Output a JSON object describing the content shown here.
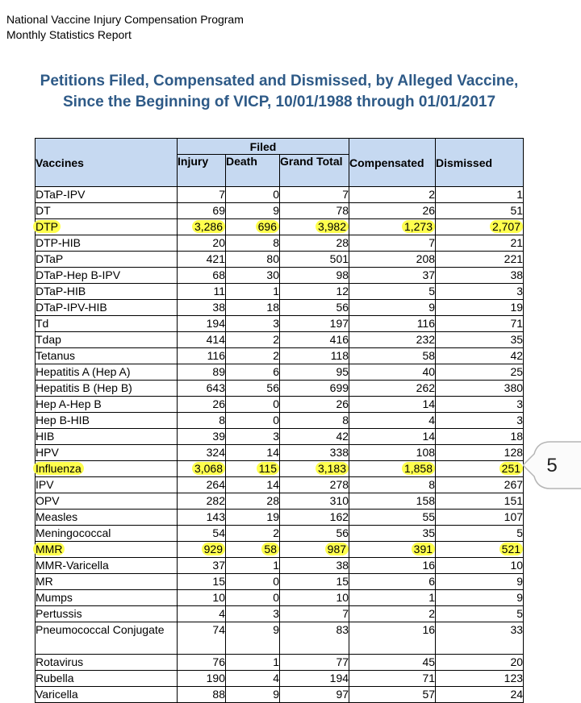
{
  "header": {
    "program": "National Vaccine Injury Compensation Program",
    "report": "Monthly Statistics Report"
  },
  "title": {
    "line1": "Petitions Filed, Compensated and Dismissed, by Alleged Vaccine,",
    "line2": "Since the Beginning of VICP, 10/01/1988 through 01/01/2017"
  },
  "table": {
    "headers": {
      "vaccines": "Vaccines",
      "filed": "Filed",
      "injury": "Injury",
      "death": "Death",
      "grand_total": "Grand Total",
      "compensated": "Compensated",
      "dismissed": "Dismissed"
    },
    "rows": [
      {
        "vaccine": "DTaP-IPV",
        "injury": "7",
        "death": "0",
        "total": "7",
        "compensated": "2",
        "dismissed": "1",
        "highlight": false
      },
      {
        "vaccine": "DT",
        "injury": "69",
        "death": "9",
        "total": "78",
        "compensated": "26",
        "dismissed": "51",
        "highlight": false
      },
      {
        "vaccine": "DTP",
        "injury": "3,286",
        "death": "696",
        "total": "3,982",
        "compensated": "1,273",
        "dismissed": "2,707",
        "highlight": true
      },
      {
        "vaccine": "DTP-HIB",
        "injury": "20",
        "death": "8",
        "total": "28",
        "compensated": "7",
        "dismissed": "21",
        "highlight": false
      },
      {
        "vaccine": "DTaP",
        "injury": "421",
        "death": "80",
        "total": "501",
        "compensated": "208",
        "dismissed": "221",
        "highlight": false
      },
      {
        "vaccine": "DTaP-Hep B-IPV",
        "injury": "68",
        "death": "30",
        "total": "98",
        "compensated": "37",
        "dismissed": "38",
        "highlight": false
      },
      {
        "vaccine": "DTaP-HIB",
        "injury": "11",
        "death": "1",
        "total": "12",
        "compensated": "5",
        "dismissed": "3",
        "highlight": false
      },
      {
        "vaccine": "DTaP-IPV-HIB",
        "injury": "38",
        "death": "18",
        "total": "56",
        "compensated": "9",
        "dismissed": "19",
        "highlight": false
      },
      {
        "vaccine": "Td",
        "injury": "194",
        "death": "3",
        "total": "197",
        "compensated": "116",
        "dismissed": "71",
        "highlight": false
      },
      {
        "vaccine": "Tdap",
        "injury": "414",
        "death": "2",
        "total": "416",
        "compensated": "232",
        "dismissed": "35",
        "highlight": false
      },
      {
        "vaccine": "Tetanus",
        "injury": "116",
        "death": "2",
        "total": "118",
        "compensated": "58",
        "dismissed": "42",
        "highlight": false
      },
      {
        "vaccine": "Hepatitis A (Hep A)",
        "injury": "89",
        "death": "6",
        "total": "95",
        "compensated": "40",
        "dismissed": "25",
        "highlight": false
      },
      {
        "vaccine": "Hepatitis B (Hep B)",
        "injury": "643",
        "death": "56",
        "total": "699",
        "compensated": "262",
        "dismissed": "380",
        "highlight": false
      },
      {
        "vaccine": "Hep A-Hep B",
        "injury": "26",
        "death": "0",
        "total": "26",
        "compensated": "14",
        "dismissed": "3",
        "highlight": false
      },
      {
        "vaccine": "Hep B-HIB",
        "injury": "8",
        "death": "0",
        "total": "8",
        "compensated": "4",
        "dismissed": "3",
        "highlight": false
      },
      {
        "vaccine": "HIB",
        "injury": "39",
        "death": "3",
        "total": "42",
        "compensated": "14",
        "dismissed": "18",
        "highlight": false
      },
      {
        "vaccine": "HPV",
        "injury": "324",
        "death": "14",
        "total": "338",
        "compensated": "108",
        "dismissed": "128",
        "highlight": false
      },
      {
        "vaccine": "Influenza",
        "injury": "3,068",
        "death": "115",
        "total": "3,183",
        "compensated": "1,858",
        "dismissed": "251",
        "highlight": true
      },
      {
        "vaccine": "IPV",
        "injury": "264",
        "death": "14",
        "total": "278",
        "compensated": "8",
        "dismissed": "267",
        "highlight": false
      },
      {
        "vaccine": "OPV",
        "injury": "282",
        "death": "28",
        "total": "310",
        "compensated": "158",
        "dismissed": "151",
        "highlight": false
      },
      {
        "vaccine": "Measles",
        "injury": "143",
        "death": "19",
        "total": "162",
        "compensated": "55",
        "dismissed": "107",
        "highlight": false
      },
      {
        "vaccine": "Meningococcal",
        "injury": "54",
        "death": "2",
        "total": "56",
        "compensated": "35",
        "dismissed": "5",
        "highlight": false
      },
      {
        "vaccine": "MMR",
        "injury": "929",
        "death": "58",
        "total": "987",
        "compensated": "391",
        "dismissed": "521",
        "highlight": true
      },
      {
        "vaccine": "MMR-Varicella",
        "injury": "37",
        "death": "1",
        "total": "38",
        "compensated": "16",
        "dismissed": "10",
        "highlight": false
      },
      {
        "vaccine": "MR",
        "injury": "15",
        "death": "0",
        "total": "15",
        "compensated": "6",
        "dismissed": "9",
        "highlight": false
      },
      {
        "vaccine": "Mumps",
        "injury": "10",
        "death": "0",
        "total": "10",
        "compensated": "1",
        "dismissed": "9",
        "highlight": false
      },
      {
        "vaccine": "Pertussis",
        "injury": "4",
        "death": "3",
        "total": "7",
        "compensated": "2",
        "dismissed": "5",
        "highlight": false
      },
      {
        "vaccine": "Pneumococcal Conjugate",
        "injury": "74",
        "death": "9",
        "total": "83",
        "compensated": "16",
        "dismissed": "33",
        "highlight": false
      },
      {
        "vaccine": "Rotavirus",
        "injury": "76",
        "death": "1",
        "total": "77",
        "compensated": "45",
        "dismissed": "20",
        "highlight": false
      },
      {
        "vaccine": "Rubella",
        "injury": "190",
        "death": "4",
        "total": "194",
        "compensated": "71",
        "dismissed": "123",
        "highlight": false
      },
      {
        "vaccine": "Varicella",
        "injury": "88",
        "death": "9",
        "total": "97",
        "compensated": "57",
        "dismissed": "24",
        "highlight": false
      }
    ]
  },
  "callout": {
    "label": "5"
  },
  "colors": {
    "title": "#2e5a87",
    "header_bg": "#c6d9f1",
    "highlight": "#ffff4d"
  }
}
